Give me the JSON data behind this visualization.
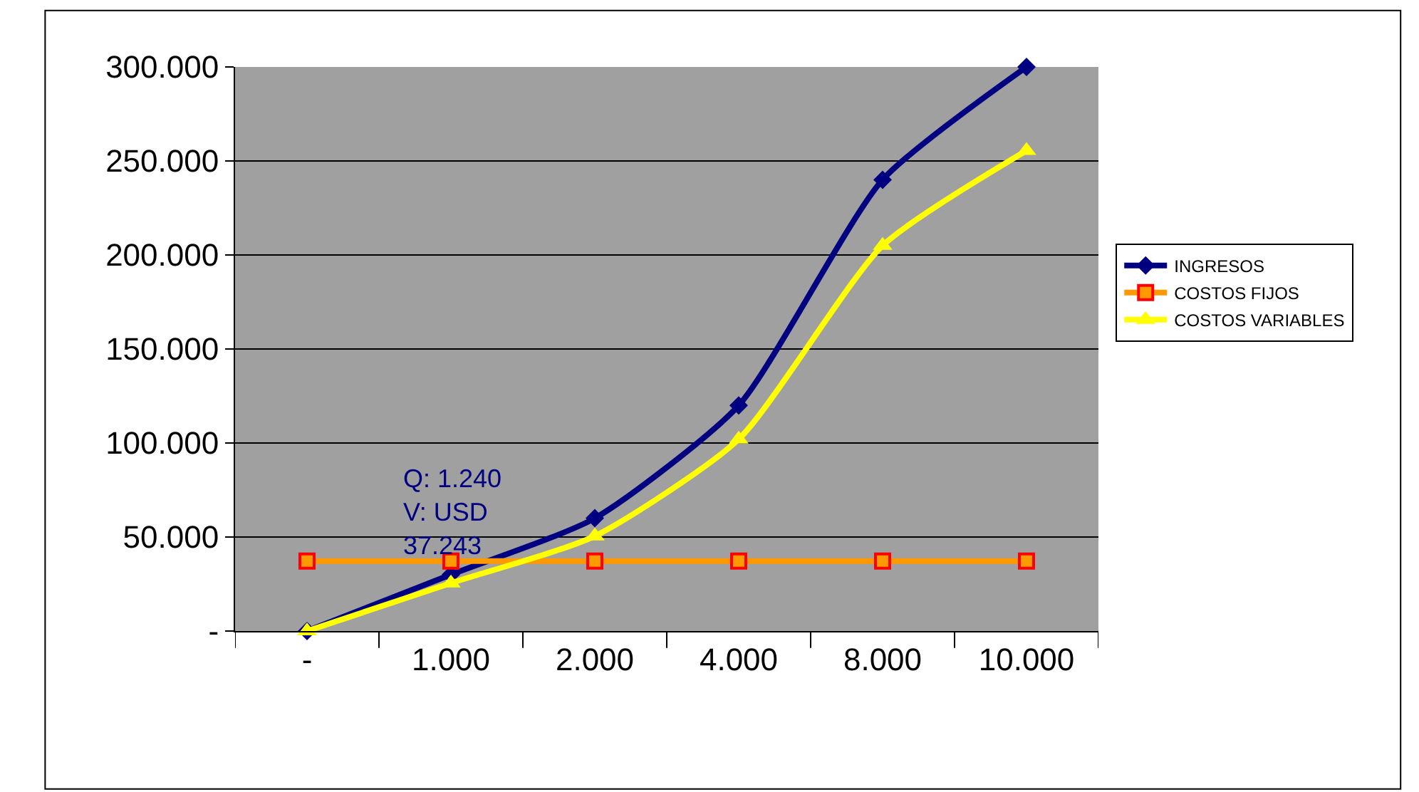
{
  "chart_data": {
    "type": "line",
    "categories": [
      "-",
      "1.000",
      "2.000",
      "4.000",
      "8.000",
      "10.000"
    ],
    "series": [
      {
        "name": "INGRESOS",
        "color": "#000080",
        "marker": "diamond",
        "values": [
          0,
          30000,
          60000,
          120000,
          240000,
          300000
        ]
      },
      {
        "name": "COSTOS FIJOS",
        "color": "#ff9900",
        "marker": "square",
        "values": [
          37243,
          37243,
          37243,
          37243,
          37243,
          37243
        ]
      },
      {
        "name": "COSTOS VARIABLES",
        "color": "#ffff00",
        "marker": "triangle",
        "values": [
          0,
          25500,
          50500,
          102000,
          205000,
          255500
        ]
      }
    ],
    "ylim": [
      0,
      300000
    ],
    "yticks": [
      {
        "value": 0,
        "label": "-"
      },
      {
        "value": 50000,
        "label": "50.000"
      },
      {
        "value": 100000,
        "label": "100.000"
      },
      {
        "value": 150000,
        "label": "150.000"
      },
      {
        "value": 200000,
        "label": "200.000"
      },
      {
        "value": 250000,
        "label": "250.000"
      },
      {
        "value": 300000,
        "label": "300.000"
      }
    ],
    "grid": "y",
    "legend": "right",
    "annotations": [
      "Q: 1.240\nV: USD\n37.243"
    ]
  }
}
